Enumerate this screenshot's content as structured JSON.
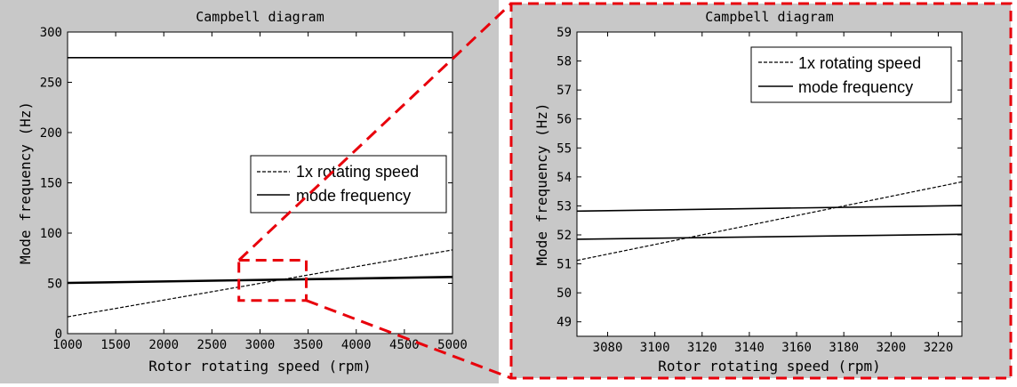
{
  "colors": {
    "figure_background": "#c8c8c8",
    "axes_background": "#ffffff",
    "ink": "#000000",
    "zoom_box": "#e8000b"
  },
  "chart_data": [
    {
      "type": "line",
      "title": "Campbell diagram",
      "xlabel": "Rotor rotating speed (rpm)",
      "ylabel": "Mode frequency (Hz)",
      "xlim": [
        1000,
        5000
      ],
      "ylim": [
        0,
        300
      ],
      "xticks": [
        "1000",
        "1500",
        "2000",
        "2500",
        "3000",
        "3500",
        "4000",
        "4500",
        "5000"
      ],
      "yticks": [
        "0",
        "50",
        "100",
        "150",
        "200",
        "250",
        "300"
      ],
      "legend": [
        "1x rotating speed",
        "mode frequency"
      ],
      "legend_position": "center-right",
      "series": [
        {
          "name": "1x rotating speed",
          "style": "dashed",
          "x": [
            1000,
            5000
          ],
          "y": [
            16.7,
            83.3
          ]
        },
        {
          "name": "mode frequency",
          "style": "solid",
          "x": [
            1000,
            5000
          ],
          "y": [
            50.0,
            55.9
          ]
        },
        {
          "name": "mode frequency",
          "style": "solid",
          "x": [
            1000,
            5000
          ],
          "y": [
            50.8,
            56.8
          ]
        },
        {
          "name": "mode frequency",
          "style": "solid",
          "x": [
            1000,
            5000
          ],
          "y": [
            274.5,
            274.5
          ]
        }
      ],
      "zoom_region": {
        "x": [
          2780,
          3480
        ],
        "y": [
          33,
          73
        ]
      }
    },
    {
      "type": "line",
      "title": "Campbell diagram",
      "xlabel": "Rotor rotating speed (rpm)",
      "ylabel": "Mode frequency (Hz)",
      "xlim": [
        3067,
        3230
      ],
      "ylim": [
        48.5,
        59
      ],
      "xticks": [
        "3080",
        "3100",
        "3120",
        "3140",
        "3160",
        "3180",
        "3200",
        "3220"
      ],
      "yticks": [
        "49",
        "50",
        "51",
        "52",
        "53",
        "54",
        "55",
        "56",
        "57",
        "58",
        "59"
      ],
      "legend": [
        "1x rotating speed",
        "mode frequency"
      ],
      "legend_position": "top-right",
      "series": [
        {
          "name": "1x rotating speed",
          "style": "dashed",
          "x": [
            3067,
            3230
          ],
          "y": [
            51.12,
            53.83
          ]
        },
        {
          "name": "mode frequency",
          "style": "solid",
          "x": [
            3067,
            3230
          ],
          "y": [
            51.85,
            52.02
          ]
        },
        {
          "name": "mode frequency",
          "style": "solid",
          "x": [
            3067,
            3230
          ],
          "y": [
            52.82,
            53.01
          ]
        }
      ]
    }
  ]
}
